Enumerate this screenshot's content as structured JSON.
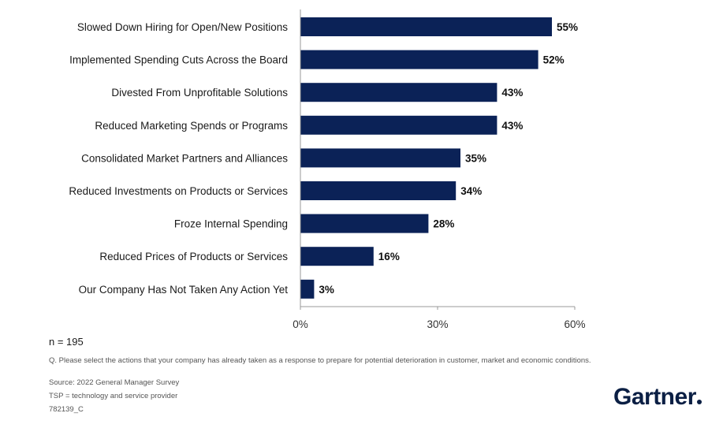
{
  "chart_data": {
    "type": "bar",
    "orientation": "horizontal",
    "categories": [
      "Slowed Down Hiring for Open/New Positions",
      "Implemented Spending Cuts Across the Board",
      "Divested From Unprofitable Solutions",
      "Reduced Marketing Spends or Programs",
      "Consolidated Market Partners and Alliances",
      "Reduced Investments on Products or Services",
      "Froze Internal Spending",
      "Reduced Prices of Products or Services",
      "Our Company Has Not Taken Any Action Yet"
    ],
    "values": [
      55,
      52,
      43,
      43,
      35,
      34,
      28,
      16,
      3
    ],
    "value_labels": [
      "55%",
      "52%",
      "43%",
      "43%",
      "35%",
      "34%",
      "28%",
      "16%",
      "3%"
    ],
    "xlim": [
      0,
      60
    ],
    "xticks": [
      "0%",
      "30%",
      "60%"
    ],
    "bar_color": "#0b2257",
    "grid": false,
    "title": "",
    "xlabel": "",
    "ylabel": ""
  },
  "footer": {
    "n": "n = 195",
    "question": "Q. Please select the actions that your company has already taken as a response to prepare for potential deterioration in customer, market and economic conditions.",
    "source": "Source: 2022 General Manager Survey",
    "tsp": "TSP = technology and service provider",
    "code": "782139_C"
  },
  "logo": {
    "text": "Gartner",
    "color": "#0b1f44"
  }
}
